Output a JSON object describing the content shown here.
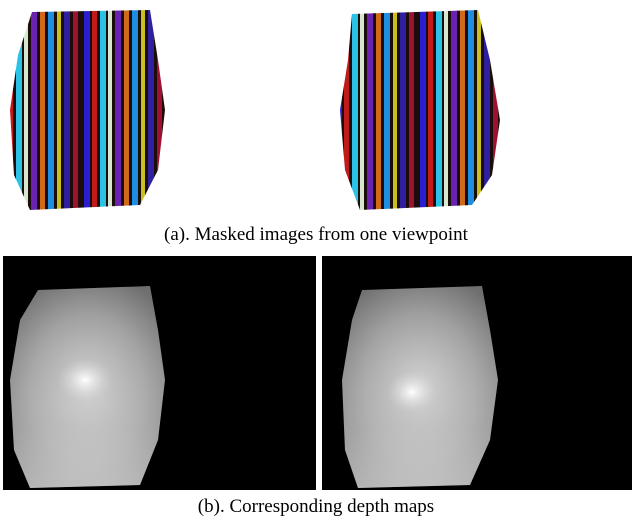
{
  "figure": {
    "caption_a": "(a). Masked images from one viewpoint",
    "caption_b": "(b). Corresponding depth maps"
  }
}
